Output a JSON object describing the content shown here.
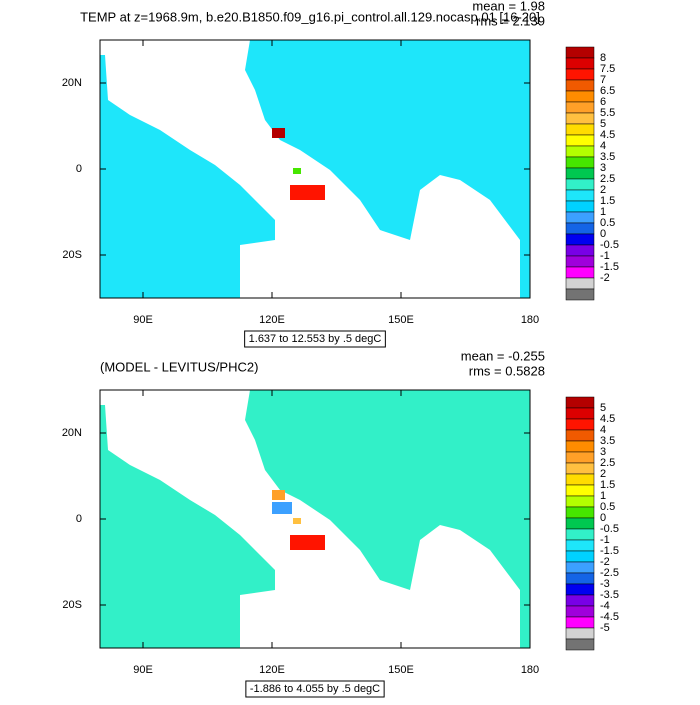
{
  "panels": [
    {
      "title": "TEMP at z=1968.9m, b.e20.B1850.f09_g16.pi_control.all.129.nocasp.01 [16-20]",
      "mean": "mean = 1.98",
      "rms": "rms = 2.139",
      "range_label": "1.637 to 12.553 by .5 degC",
      "xlim": [
        80,
        180
      ],
      "ylim": [
        -30,
        30
      ],
      "xticks": [
        {
          "value": 90,
          "label": "90E"
        },
        {
          "value": 120,
          "label": "120E"
        },
        {
          "value": 150,
          "label": "150E"
        },
        180
      ],
      "yticks": [
        {
          "value": 20,
          "label": "20N"
        },
        0,
        {
          "value": -20,
          "label": "20S"
        }
      ],
      "levels": [
        8,
        7.5,
        7,
        6.5,
        6,
        5.5,
        5,
        4.5,
        4,
        3.5,
        3,
        2.5,
        2,
        1.5,
        1,
        0.5,
        0,
        -0.5,
        -1,
        -1.5,
        -2
      ],
      "ocean_color": "#1ee6fa"
    },
    {
      "title": "(MODEL - LEVITUS/PHC2)",
      "mean": "mean = -0.255",
      "rms": "rms = 0.5828",
      "range_label": "-1.886 to 4.055 by .5 degC",
      "xlim": [
        80,
        180
      ],
      "ylim": [
        -30,
        30
      ],
      "xticks": [
        {
          "value": 90,
          "label": "90E"
        },
        {
          "value": 120,
          "label": "120E"
        },
        {
          "value": 150,
          "label": "150E"
        },
        180
      ],
      "yticks": [
        {
          "value": 20,
          "label": "20N"
        },
        0,
        {
          "value": -20,
          "label": "20S"
        }
      ],
      "levels": [
        5,
        4.5,
        4,
        3.5,
        3,
        2.5,
        2,
        1.5,
        1,
        0.5,
        0,
        -0.5,
        -1,
        -1.5,
        -2,
        -2.5,
        -3,
        -3.5,
        -4,
        -4.5,
        -5
      ],
      "ocean_color": "#32f0c8"
    }
  ],
  "colors": [
    "#b40000",
    "#dc0000",
    "#ff1400",
    "#f05a00",
    "#ff8c00",
    "#ffa028",
    "#ffc040",
    "#ffdc00",
    "#ffff00",
    "#b4ff00",
    "#46e600",
    "#00c850",
    "#32f0c8",
    "#1ee6fa",
    "#00d2ff",
    "#3ca0ff",
    "#1464e6",
    "#0000f0",
    "#7800e6",
    "#a000dc",
    "#ff00ff",
    "#d2d2d2",
    "#737373"
  ]
}
